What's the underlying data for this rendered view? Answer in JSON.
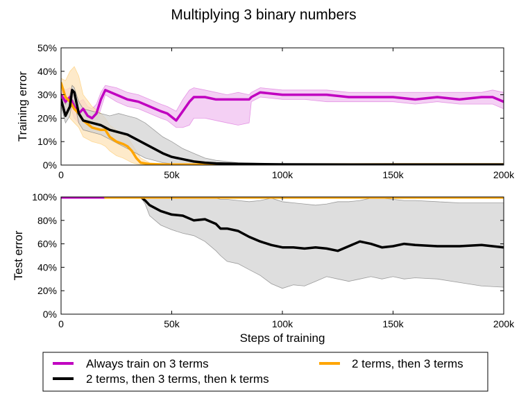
{
  "chart_data": {
    "title": "Multiplying 3 binary numbers",
    "xlabel": "Steps of training",
    "legend": {
      "placement": "bottom",
      "entries": [
        {
          "label": "Always train on 3 terms",
          "color": "#c000c0"
        },
        {
          "label": "2 terms, then 3 terms",
          "color": "#ffa500"
        },
        {
          "label": "2 terms, then 3 terms, then k terms",
          "color": "#000000"
        }
      ]
    },
    "panels": [
      {
        "type": "line",
        "ylabel": "Training error",
        "xlim": [
          0,
          200000
        ],
        "ylim": [
          0,
          50
        ],
        "xticks": [
          0,
          50000,
          100000,
          150000,
          200000
        ],
        "xtick_labels": [
          "0",
          "50k",
          "100k",
          "150k",
          "200k"
        ],
        "yticks": [
          0,
          10,
          20,
          30,
          40,
          50
        ],
        "ytick_labels": [
          "0%",
          "10%",
          "20%",
          "30%",
          "40%",
          "50%"
        ],
        "series": [
          {
            "name": "Always train on 3 terms",
            "color": "#c000c0",
            "band_color": "#f0c0f0",
            "x": [
              0,
              2000,
              4000,
              6000,
              8000,
              10000,
              12000,
              14000,
              16000,
              18000,
              20000,
              25000,
              30000,
              35000,
              40000,
              45000,
              48000,
              52000,
              55000,
              58000,
              60000,
              65000,
              70000,
              75000,
              80000,
              85000,
              86000,
              90000,
              100000,
              110000,
              120000,
              130000,
              140000,
              150000,
              160000,
              170000,
              180000,
              190000,
              195000,
              200000
            ],
            "y": [
              30,
              27,
              29,
              25,
              22,
              24,
              21,
              20,
              22,
              28,
              32,
              30,
              28,
              27,
              25,
              23,
              22,
              19,
              23,
              27,
              29,
              29,
              28,
              28,
              28,
              28,
              29,
              31,
              30,
              30,
              30,
              29,
              29,
              29,
              28,
              29,
              28,
              29,
              29,
              27
            ],
            "upper": [
              34,
              32,
              33,
              30,
              27,
              28,
              25,
              24,
              26,
              31,
              34,
              33,
              31,
              30,
              28,
              26,
              25,
              23,
              28,
              32,
              33,
              32,
              31,
              30,
              31,
              30,
              31,
              33,
              32,
              32,
              32,
              31,
              31,
              31,
              31,
              31,
              31,
              31,
              32,
              31
            ],
            "lower": [
              26,
              22,
              25,
              20,
              18,
              20,
              17,
              16,
              18,
              24,
              30,
              27,
              25,
              24,
              22,
              20,
              19,
              16,
              16,
              17,
              20,
              20,
              19,
              18,
              17,
              18,
              27,
              29,
              28,
              28,
              27,
              27,
              27,
              27,
              26,
              27,
              26,
              26,
              26,
              24
            ]
          },
          {
            "name": "2 terms, then 3 terms",
            "color": "#ffa500",
            "band_color": "#fde3b8",
            "x": [
              0,
              2000,
              4000,
              6000,
              8000,
              10000,
              14000,
              18000,
              20000,
              22000,
              25000,
              28000,
              30000,
              32000,
              34000,
              36000,
              40000,
              45000,
              50000,
              100000,
              150000,
              200000
            ],
            "y": [
              35,
              29,
              27,
              24,
              22,
              19,
              16,
              15,
              15,
              12,
              10,
              9,
              8,
              6,
              3,
              1,
              0.4,
              0.3,
              0.2,
              0.2,
              0.3,
              0.3
            ],
            "upper": [
              37,
              36,
              40,
              42,
              38,
              30,
              25,
              22,
              20,
              17,
              15,
              13,
              12,
              9,
              6,
              3,
              1,
              0.6,
              0.4,
              0.3,
              0.4,
              0.5
            ],
            "lower": [
              33,
              24,
              20,
              18,
              16,
              12,
              10,
              9,
              8,
              6,
              4,
              3,
              2,
              1,
              0.5,
              0.2,
              0.1,
              0.1,
              0.1,
              0.1,
              0.1,
              0.1
            ]
          },
          {
            "name": "2 terms, then 3 terms, then k terms",
            "color": "#000000",
            "band_color": "#d3d3d3",
            "x": [
              0,
              2000,
              4000,
              5000,
              6000,
              8000,
              10000,
              14000,
              18000,
              22000,
              26000,
              30000,
              34000,
              38000,
              42000,
              46000,
              50000,
              55000,
              60000,
              65000,
              70000,
              80000,
              100000,
              150000,
              200000
            ],
            "y": [
              28,
              21,
              25,
              32,
              31,
              22,
              19,
              18,
              17,
              15,
              14,
              13,
              11,
              9,
              7,
              5,
              3.5,
              2.5,
              1.5,
              1,
              0.7,
              0.5,
              0.3,
              0.2,
              0.2
            ],
            "upper": [
              31,
              26,
              30,
              34,
              33,
              27,
              24,
              23,
              22,
              21,
              22,
              21,
              20,
              18,
              15,
              12,
              10,
              7,
              5,
              3,
              2,
              1,
              0.5,
              0.3,
              0.3
            ],
            "lower": [
              25,
              18,
              21,
              28,
              27,
              18,
              15,
              14,
              13,
              11,
              9,
              7,
              5,
              3,
              2,
              1,
              0.6,
              0.4,
              0.3,
              0.2,
              0.2,
              0.1,
              0.1,
              0.1,
              0.1
            ]
          }
        ]
      },
      {
        "type": "line",
        "ylabel": "Test error",
        "xlim": [
          0,
          200000
        ],
        "ylim": [
          0,
          100
        ],
        "xticks": [
          0,
          50000,
          100000,
          150000,
          200000
        ],
        "xtick_labels": [
          "0",
          "50k",
          "100k",
          "150k",
          "200k"
        ],
        "yticks": [
          0,
          20,
          40,
          60,
          80,
          100
        ],
        "ytick_labels": [
          "0%",
          "20%",
          "40%",
          "60%",
          "80%",
          "100%"
        ],
        "series": [
          {
            "name": "2 terms, then 3 terms, then k terms",
            "color": "#000000",
            "band_color": "#d3d3d3",
            "x": [
              0,
              30000,
              36000,
              38000,
              40000,
              45000,
              50000,
              55000,
              60000,
              65000,
              70000,
              72000,
              75000,
              80000,
              85000,
              90000,
              95000,
              100000,
              105000,
              110000,
              115000,
              120000,
              125000,
              130000,
              135000,
              140000,
              145000,
              150000,
              155000,
              160000,
              170000,
              180000,
              190000,
              200000
            ],
            "y": [
              100,
              100,
              100,
              97,
              93,
              88,
              85,
              84,
              80,
              81,
              77,
              73,
              73,
              71,
              66,
              62,
              59,
              57,
              57,
              56,
              57,
              56,
              54,
              58,
              62,
              60,
              57,
              58,
              60,
              59,
              58,
              58,
              59,
              57
            ],
            "upper": [
              100,
              100,
              100,
              100,
              100,
              100,
              100,
              100,
              100,
              100,
              99,
              98,
              98,
              97,
              96,
              97,
              99,
              96,
              95,
              94,
              93,
              94,
              96,
              96,
              97,
              99,
              99,
              98,
              97,
              97,
              96,
              95,
              95,
              95
            ],
            "lower": [
              100,
              100,
              100,
              94,
              84,
              76,
              72,
              69,
              67,
              62,
              54,
              50,
              45,
              43,
              38,
              33,
              26,
              22,
              25,
              24,
              28,
              32,
              30,
              28,
              30,
              32,
              30,
              32,
              30,
              31,
              30,
              27,
              24,
              23
            ]
          },
          {
            "name": "Always train on 3 terms",
            "color": "#c000c0",
            "band_color": "#f0c0f0",
            "x": [
              0,
              20000
            ],
            "y": [
              99.6,
              99.6
            ],
            "upper": [
              100,
              100
            ],
            "lower": [
              99.2,
              99.2
            ]
          },
          {
            "name": "2 terms, then 3 terms",
            "color": "#ffa500",
            "band_color": "#fde3b8",
            "x": [
              20000,
              200000
            ],
            "y": [
              99.6,
              99.6
            ],
            "upper": [
              100,
              100
            ],
            "lower": [
              99.2,
              99.2
            ]
          }
        ]
      }
    ]
  }
}
